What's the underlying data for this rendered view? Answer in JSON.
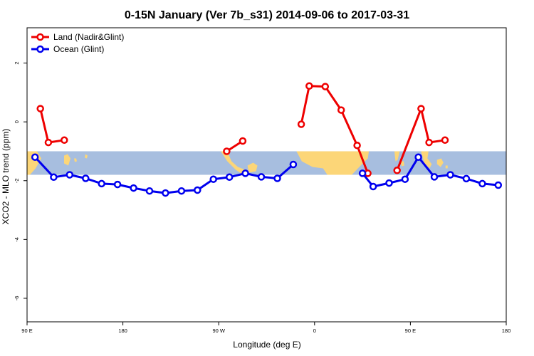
{
  "chart_data": {
    "type": "line",
    "title": "0-15N January (Ver 7b_s31)   2014-09-06 to 2017-03-31",
    "xlabel": "Longitude (deg E)",
    "ylabel": "XCO2 - MLO trend (ppm)",
    "xlim": [
      90,
      540
    ],
    "ylim": [
      -6.8,
      3.2
    ],
    "x_ticks": [
      {
        "value": 90,
        "label": "90 E"
      },
      {
        "value": 180,
        "label": "180"
      },
      {
        "value": 270,
        "label": "90 W"
      },
      {
        "value": 360,
        "label": "0"
      },
      {
        "value": 450,
        "label": "90 E"
      },
      {
        "value": 540,
        "label": "180"
      }
    ],
    "y_ticks": [
      {
        "value": 2,
        "label": "2"
      },
      {
        "value": 0,
        "label": "0"
      },
      {
        "value": -2,
        "label": "-2"
      },
      {
        "value": -4,
        "label": "-4"
      },
      {
        "value": -6,
        "label": "-6"
      }
    ],
    "map_band": {
      "ymin": -1.8,
      "ymax": -1.0,
      "ocean_color": "#a7bedf",
      "land_color": "#fcd678"
    },
    "legend_position": "top-left",
    "series": [
      {
        "name": "Land (Nadir&Glint)",
        "color": "#ee0000",
        "segments": [
          [
            [
              102.5,
              0.45
            ],
            [
              110,
              -0.7
            ],
            [
              125,
              -0.62
            ]
          ],
          [
            [
              277.5,
              -1.0
            ],
            [
              292.5,
              -0.65
            ]
          ],
          [
            [
              347.5,
              -0.08
            ],
            [
              355,
              1.22
            ],
            [
              370,
              1.2
            ],
            [
              385,
              0.4
            ],
            [
              400,
              -0.8
            ],
            [
              410,
              -1.75
            ]
          ],
          [
            [
              437.5,
              -1.65
            ],
            [
              460,
              0.45
            ],
            [
              467.5,
              -0.7
            ],
            [
              482.5,
              -0.62
            ]
          ]
        ]
      },
      {
        "name": "Ocean (Glint)",
        "color": "#0000ee",
        "segments": [
          [
            [
              97.5,
              -1.2
            ],
            [
              115,
              -1.88
            ],
            [
              130,
              -1.8
            ],
            [
              145,
              -1.92
            ],
            [
              160,
              -2.1
            ],
            [
              175,
              -2.13
            ],
            [
              190,
              -2.25
            ],
            [
              205,
              -2.35
            ],
            [
              220,
              -2.42
            ],
            [
              235,
              -2.35
            ],
            [
              250,
              -2.32
            ],
            [
              265,
              -1.95
            ],
            [
              280,
              -1.88
            ],
            [
              295,
              -1.75
            ],
            [
              310,
              -1.87
            ],
            [
              325,
              -1.92
            ],
            [
              340,
              -1.45
            ]
          ],
          [
            [
              405,
              -1.75
            ],
            [
              415,
              -2.2
            ],
            [
              430,
              -2.08
            ],
            [
              445,
              -1.95
            ],
            [
              457.5,
              -1.2
            ],
            [
              472.5,
              -1.87
            ],
            [
              487.5,
              -1.8
            ],
            [
              502.5,
              -1.93
            ],
            [
              517.5,
              -2.1
            ],
            [
              532.5,
              -2.15
            ]
          ]
        ]
      }
    ]
  }
}
